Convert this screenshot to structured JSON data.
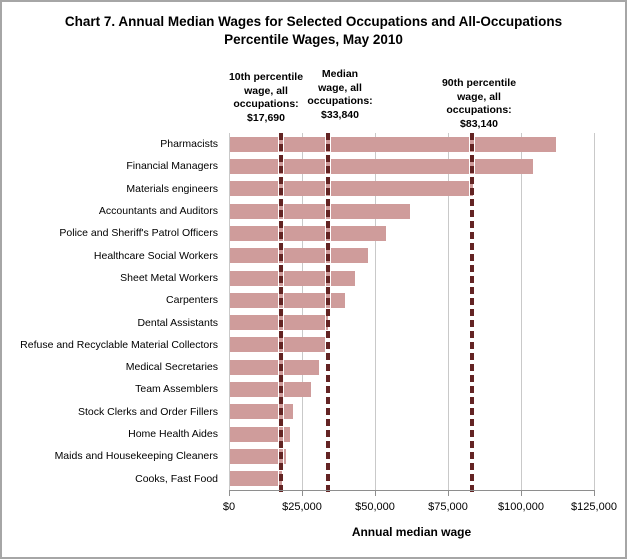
{
  "title": {
    "line1": "Chart 7. Annual Median Wages for Selected Occupations and All-Occupations",
    "line2": "Percentile Wages, May 2010"
  },
  "chart_data": {
    "type": "bar",
    "orientation": "horizontal",
    "title": "Chart 7. Annual Median Wages for Selected Occupations and All-Occupations Percentile Wages, May 2010",
    "xlabel": "Annual median wage",
    "xlim": [
      0,
      125000
    ],
    "grid": "vertical",
    "categories": [
      "Pharmacists",
      "Financial Managers",
      "Materials engineers",
      "Accountants and Auditors",
      "Police and Sheriff's Patrol Officers",
      "Healthcare Social Workers",
      "Sheet Metal Workers",
      "Carpenters",
      "Dental Assistants",
      "Refuse and Recyclable Material Collectors",
      "Medical Secretaries",
      "Team Assemblers",
      "Stock Clerks and Order Fillers",
      "Home Health Aides",
      "Maids and Housekeeping Cleaners",
      "Cooks, Fast Food"
    ],
    "values": [
      111570,
      103910,
      83120,
      61690,
      53540,
      47230,
      42730,
      39530,
      33470,
      32560,
      30530,
      27580,
      21720,
      20560,
      19300,
      17950
    ],
    "xticks": [
      {
        "value": 0,
        "label": "$0"
      },
      {
        "value": 25000,
        "label": "$25,000"
      },
      {
        "value": 50000,
        "label": "$50,000"
      },
      {
        "value": 75000,
        "label": "$75,000"
      },
      {
        "value": 100000,
        "label": "$100,000"
      },
      {
        "value": 125000,
        "label": "$125,000"
      }
    ],
    "reference_lines": [
      {
        "value": 17690,
        "lines": [
          "10th percentile",
          "wage, all",
          "occupations:",
          "$17,690"
        ]
      },
      {
        "value": 33840,
        "lines": [
          "Median",
          "wage, all",
          "occupations:",
          "$33,840"
        ]
      },
      {
        "value": 83140,
        "lines": [
          "90th percentile",
          "wage, all",
          "occupations:",
          "$83,140"
        ]
      }
    ],
    "colors": {
      "bar": "#cf9c9b",
      "reference_line": "#632423",
      "gridline": "#c9c9c9",
      "axis": "#8e8e8e",
      "text": "#000000",
      "background": "#ffffff",
      "frame_border": "#a6a6a6"
    }
  }
}
